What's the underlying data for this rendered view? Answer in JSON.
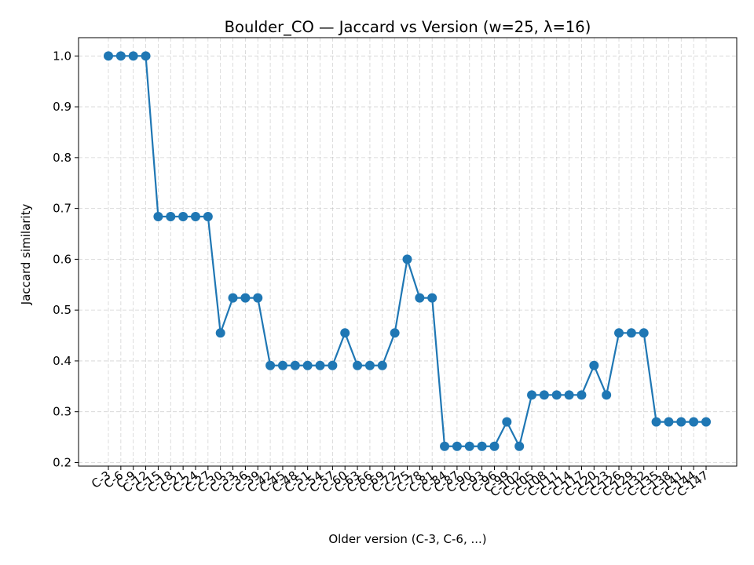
{
  "chart_data": {
    "type": "line",
    "title": "Boulder_CO — Jaccard vs Version (w=25, λ=16)",
    "xlabel": "Older version (C-3, C-6, ...)",
    "ylabel": "Jaccard similarity",
    "ylim": [
      0.193,
      1.036
    ],
    "yticks": [
      "0.2",
      "0.3",
      "0.4",
      "0.5",
      "0.6",
      "0.7",
      "0.8",
      "0.9",
      "1.0"
    ],
    "grid": true,
    "line_color": "#1f77b4",
    "categories": [
      "C-3",
      "C-6",
      "C-9",
      "C-12",
      "C-15",
      "C-18",
      "C-21",
      "C-24",
      "C-27",
      "C-30",
      "C-33",
      "C-36",
      "C-39",
      "C-42",
      "C-45",
      "C-48",
      "C-51",
      "C-54",
      "C-57",
      "C-60",
      "C-63",
      "C-66",
      "C-69",
      "C-72",
      "C-75",
      "C-78",
      "C-81",
      "C-84",
      "C-87",
      "C-90",
      "C-93",
      "C-96",
      "C-99",
      "C-102",
      "C-105",
      "C-108",
      "C-111",
      "C-114",
      "C-117",
      "C-120",
      "C-123",
      "C-126",
      "C-129",
      "C-132",
      "C-135",
      "C-138",
      "C-141",
      "C-144",
      "C-147"
    ],
    "series": [
      {
        "values": [
          1.0,
          1.0,
          1.0,
          1.0,
          0.684,
          0.684,
          0.684,
          0.684,
          0.684,
          0.455,
          0.524,
          0.524,
          0.524,
          0.391,
          0.391,
          0.391,
          0.391,
          0.391,
          0.391,
          0.455,
          0.391,
          0.391,
          0.391,
          0.455,
          0.6,
          0.524,
          0.524,
          0.232,
          0.232,
          0.232,
          0.232,
          0.232,
          0.28,
          0.232,
          0.333,
          0.333,
          0.333,
          0.333,
          0.333,
          0.391,
          0.333,
          0.455,
          0.455,
          0.455,
          0.28,
          0.28,
          0.28,
          0.28,
          0.28
        ]
      }
    ]
  }
}
